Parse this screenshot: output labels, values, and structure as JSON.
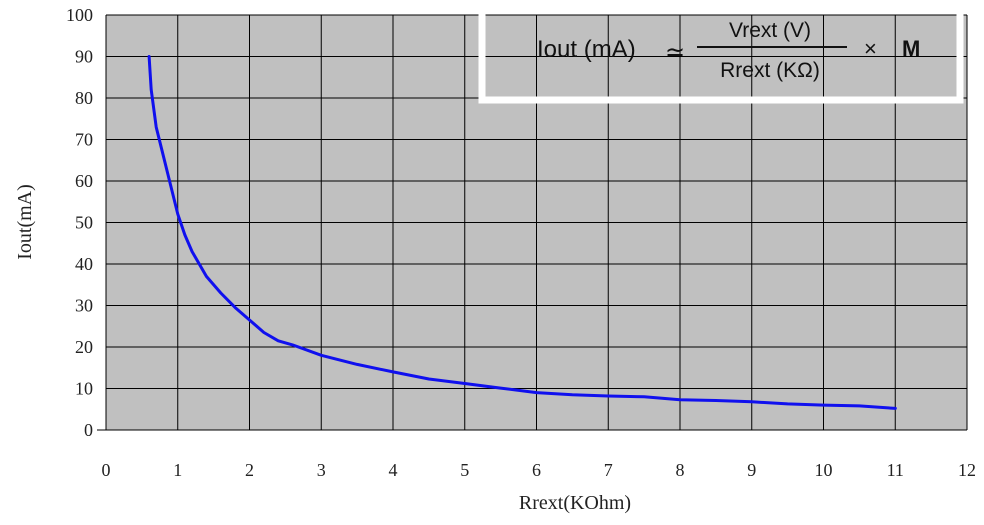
{
  "chart_data": {
    "type": "line",
    "xlabel": "Rrext(KOhm)",
    "ylabel": "Iout(mA)",
    "xlim": [
      0,
      12
    ],
    "ylim": [
      0,
      100
    ],
    "xticks": [
      "0",
      "1",
      "2",
      "3",
      "4",
      "5",
      "6",
      "7",
      "8",
      "9",
      "10",
      "11",
      "12"
    ],
    "yticks": [
      "0",
      "10",
      "20",
      "30",
      "40",
      "50",
      "60",
      "70",
      "80",
      "90",
      "100"
    ],
    "grid": true,
    "colors": {
      "line": "#1010ee",
      "plot_bg": "#c0c0c0",
      "grid": "#000000",
      "formula_box": "#ffffff"
    },
    "series": [
      {
        "x": [
          0.6,
          0.63,
          0.7,
          0.8,
          0.9,
          1.0,
          1.1,
          1.2,
          1.4,
          1.6,
          1.8,
          2.0,
          2.2,
          2.4,
          2.6,
          3.0,
          3.5,
          4.0,
          4.5,
          5.0,
          5.5,
          6.0,
          6.5,
          7.0,
          7.5,
          8.0,
          8.5,
          9.0,
          9.5,
          10.0,
          10.5,
          11.0
        ],
        "values": [
          90,
          82,
          73,
          66,
          59,
          52,
          47,
          43,
          37,
          33,
          29.5,
          26.5,
          23.5,
          21.5,
          20.5,
          18,
          15.8,
          14,
          12.3,
          11.2,
          10.1,
          9,
          8.5,
          8.2,
          8,
          7.3,
          7.1,
          6.8,
          6.3,
          6,
          5.8,
          5.2
        ]
      }
    ],
    "formula": {
      "lhs": "Iout (mA)",
      "approx": "≃",
      "numerator": "Vrext (V)",
      "denominator": "Rrext (KΩ)",
      "times": "×",
      "factor": "M"
    }
  }
}
